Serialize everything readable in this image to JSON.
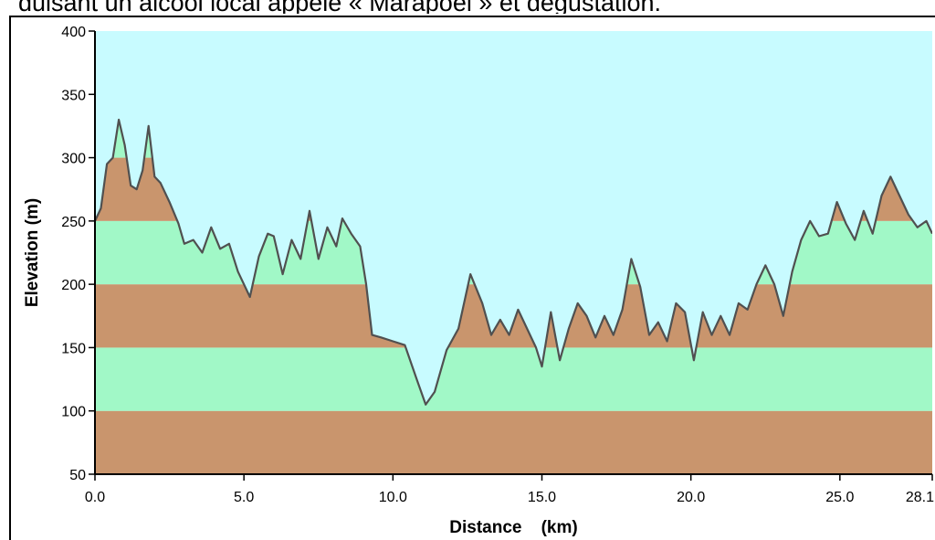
{
  "caption": "duisant un alcool local appelé « Marapoel » et dégustation.",
  "colors": {
    "sky": "#c8fbff",
    "band_green": "#a1f8c7",
    "band_brown": "#c9956d",
    "line": "#505050"
  },
  "chart_data": {
    "type": "area",
    "title": "",
    "xlabel": "Distance    (km)",
    "ylabel": "Elevation (m)",
    "xlim": [
      0,
      28.1
    ],
    "ylim": [
      50,
      400
    ],
    "xticks": [
      0,
      5,
      10,
      15,
      20,
      25,
      28.1
    ],
    "xtick_labels": [
      "0.0",
      "5.0",
      "10.0",
      "15.0",
      "20.0",
      "25.0",
      "28.1"
    ],
    "yticks": [
      50,
      100,
      150,
      200,
      250,
      300,
      350,
      400
    ],
    "ytick_labels": [
      "50",
      "100",
      "150",
      "200",
      "250",
      "300",
      "350",
      "400"
    ],
    "bands": [
      {
        "from": 50,
        "to": 100,
        "color": "band_brown"
      },
      {
        "from": 100,
        "to": 150,
        "color": "band_green"
      },
      {
        "from": 150,
        "to": 200,
        "color": "band_brown"
      },
      {
        "from": 200,
        "to": 250,
        "color": "band_green"
      },
      {
        "from": 250,
        "to": 300,
        "color": "band_brown"
      },
      {
        "from": 300,
        "to": 350,
        "color": "band_green"
      },
      {
        "from": 350,
        "to": 400,
        "color": "band_brown"
      }
    ],
    "grid": false,
    "series": [
      {
        "x": [
          0.0,
          0.2,
          0.4,
          0.6,
          0.8,
          1.0,
          1.2,
          1.4,
          1.6,
          1.8,
          2.0,
          2.2,
          2.5,
          2.8,
          3.0,
          3.3,
          3.6,
          3.9,
          4.2,
          4.5,
          4.8,
          5.2,
          5.5,
          5.8,
          6.0,
          6.3,
          6.6,
          6.9,
          7.2,
          7.5,
          7.8,
          8.1,
          8.3,
          8.6,
          8.9,
          9.1,
          9.3,
          9.6,
          10.0,
          10.4,
          10.8,
          11.1,
          11.4,
          11.8,
          12.2,
          12.6,
          13.0,
          13.3,
          13.6,
          13.9,
          14.2,
          14.5,
          14.8,
          15.0,
          15.3,
          15.6,
          15.9,
          16.2,
          16.5,
          16.8,
          17.1,
          17.4,
          17.7,
          18.0,
          18.3,
          18.6,
          18.9,
          19.2,
          19.5,
          19.8,
          20.1,
          20.4,
          20.7,
          21.0,
          21.3,
          21.6,
          21.9,
          22.2,
          22.5,
          22.8,
          23.1,
          23.4,
          23.7,
          24.0,
          24.3,
          24.6,
          24.9,
          25.2,
          25.5,
          25.8,
          26.1,
          26.4,
          26.7,
          27.0,
          27.3,
          27.6,
          27.9,
          28.1
        ],
        "y": [
          250,
          260,
          295,
          300,
          330,
          310,
          278,
          275,
          290,
          325,
          285,
          280,
          265,
          248,
          232,
          235,
          225,
          245,
          228,
          232,
          210,
          190,
          222,
          240,
          238,
          208,
          235,
          220,
          258,
          220,
          245,
          230,
          252,
          240,
          230,
          200,
          160,
          158,
          155,
          152,
          125,
          105,
          115,
          148,
          165,
          208,
          185,
          160,
          172,
          160,
          180,
          165,
          150,
          135,
          178,
          140,
          165,
          185,
          175,
          158,
          175,
          160,
          180,
          220,
          198,
          160,
          170,
          155,
          185,
          178,
          140,
          178,
          160,
          175,
          160,
          185,
          180,
          200,
          215,
          200,
          175,
          210,
          235,
          250,
          238,
          240,
          265,
          248,
          235,
          258,
          240,
          270,
          285,
          270,
          255,
          245,
          250,
          240
        ]
      }
    ]
  }
}
